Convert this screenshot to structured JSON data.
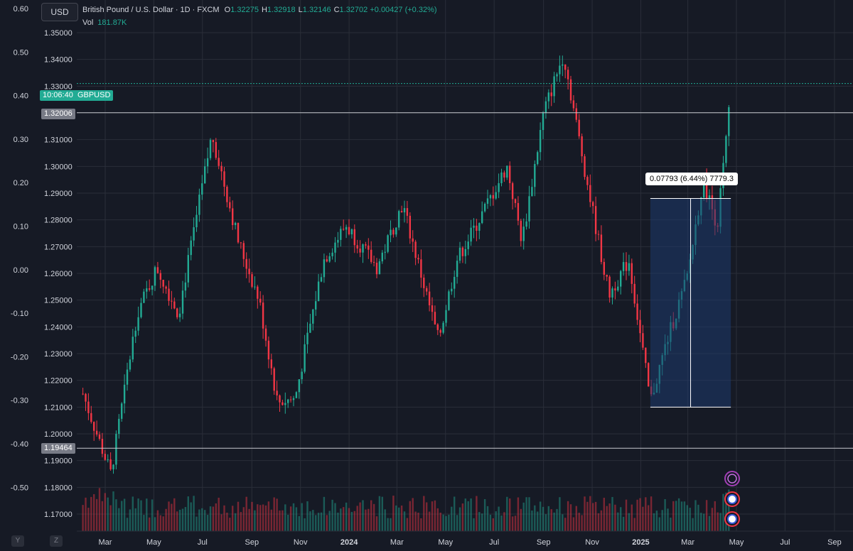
{
  "header": {
    "currency_badge": "USD",
    "symbol_title": "British Pound / U.S. Dollar · 1D · FXCM",
    "ohlc": [
      {
        "k": "O",
        "v": "1.32275"
      },
      {
        "k": "H",
        "v": "1.32918"
      },
      {
        "k": "L",
        "v": "1.32146"
      },
      {
        "k": "C",
        "v": "1.32702"
      }
    ],
    "change": "+0.00427 (+0.32%)",
    "vol_label": "Vol",
    "vol_value": "181.87K"
  },
  "price_tags": {
    "countdown": "10:06:40",
    "symbol": "GBPUSD",
    "line1": "1.32006",
    "line2": "1.19464"
  },
  "measure_label": "0.07793 (6.44%) 7779.3",
  "footer_buttons": [
    "Y",
    "Z"
  ],
  "colors": {
    "up": "#22ab94",
    "down": "#f23645",
    "bg": "#161a25",
    "grid": "#2a2e39",
    "measure": "#1e3a6e"
  },
  "chart_data": {
    "type": "candlestick",
    "left_axis_ticks": [
      "0.60",
      "0.50",
      "0.40",
      "0.30",
      "0.20",
      "0.10",
      "0.00",
      "-0.10",
      "-0.20",
      "-0.30",
      "-0.40",
      "-0.50"
    ],
    "price_axis_ticks": [
      "1.35000",
      "1.34000",
      "1.33000",
      "1.32000",
      "1.31000",
      "1.30000",
      "1.29000",
      "1.28000",
      "1.27000",
      "1.26000",
      "1.25000",
      "1.24000",
      "1.23000",
      "1.22000",
      "1.21000",
      "1.20000",
      "1.19000",
      "1.18000",
      "1.17000"
    ],
    "x_ticks": [
      "Mar",
      "May",
      "Jul",
      "Sep",
      "Nov",
      "2024",
      "Mar",
      "May",
      "Jul",
      "Sep",
      "Nov",
      "2025",
      "Mar",
      "May",
      "Jul",
      "Sep"
    ],
    "price_path": [
      [
        "2023-02-01",
        1.215
      ],
      [
        "2023-03-08",
        1.185
      ],
      [
        "2023-04-10",
        1.245
      ],
      [
        "2023-05-05",
        1.262
      ],
      [
        "2023-06-01",
        1.245
      ],
      [
        "2023-07-13",
        1.312
      ],
      [
        "2023-08-15",
        1.272
      ],
      [
        "2023-09-10",
        1.25
      ],
      [
        "2023-10-03",
        1.212
      ],
      [
        "2023-10-25",
        1.213
      ],
      [
        "2023-11-30",
        1.265
      ],
      [
        "2023-12-28",
        1.278
      ],
      [
        "2024-02-05",
        1.262
      ],
      [
        "2024-03-08",
        1.286
      ],
      [
        "2024-04-22",
        1.235
      ],
      [
        "2024-05-15",
        1.265
      ],
      [
        "2024-06-12",
        1.28
      ],
      [
        "2024-07-17",
        1.3
      ],
      [
        "2024-08-05",
        1.272
      ],
      [
        "2024-09-01",
        1.32
      ],
      [
        "2024-09-26",
        1.342
      ],
      [
        "2024-10-25",
        1.295
      ],
      [
        "2024-11-22",
        1.252
      ],
      [
        "2024-12-17",
        1.265
      ],
      [
        "2025-01-13",
        1.212
      ],
      [
        "2025-02-03",
        1.235
      ],
      [
        "2025-02-28",
        1.258
      ],
      [
        "2025-03-20",
        1.295
      ],
      [
        "2025-04-07",
        1.278
      ],
      [
        "2025-04-24",
        1.327
      ]
    ],
    "measure_range": {
      "from": "2025-01-13",
      "to": "2025-04-24",
      "low": 1.21,
      "high": 1.288
    }
  }
}
